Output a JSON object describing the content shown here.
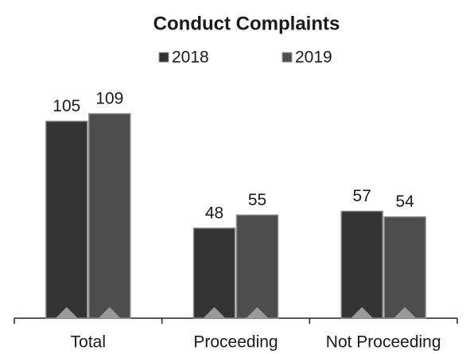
{
  "chart_data": {
    "type": "bar",
    "title": "Conduct Complaints",
    "categories": [
      "Total",
      "Proceeding",
      "Not Proceeding"
    ],
    "series": [
      {
        "name": "2018",
        "color": "#333333",
        "values": [
          105,
          48,
          57
        ]
      },
      {
        "name": "2019",
        "color": "#4d4d4d",
        "values": [
          109,
          55,
          54
        ]
      }
    ],
    "legend": "top"
  }
}
